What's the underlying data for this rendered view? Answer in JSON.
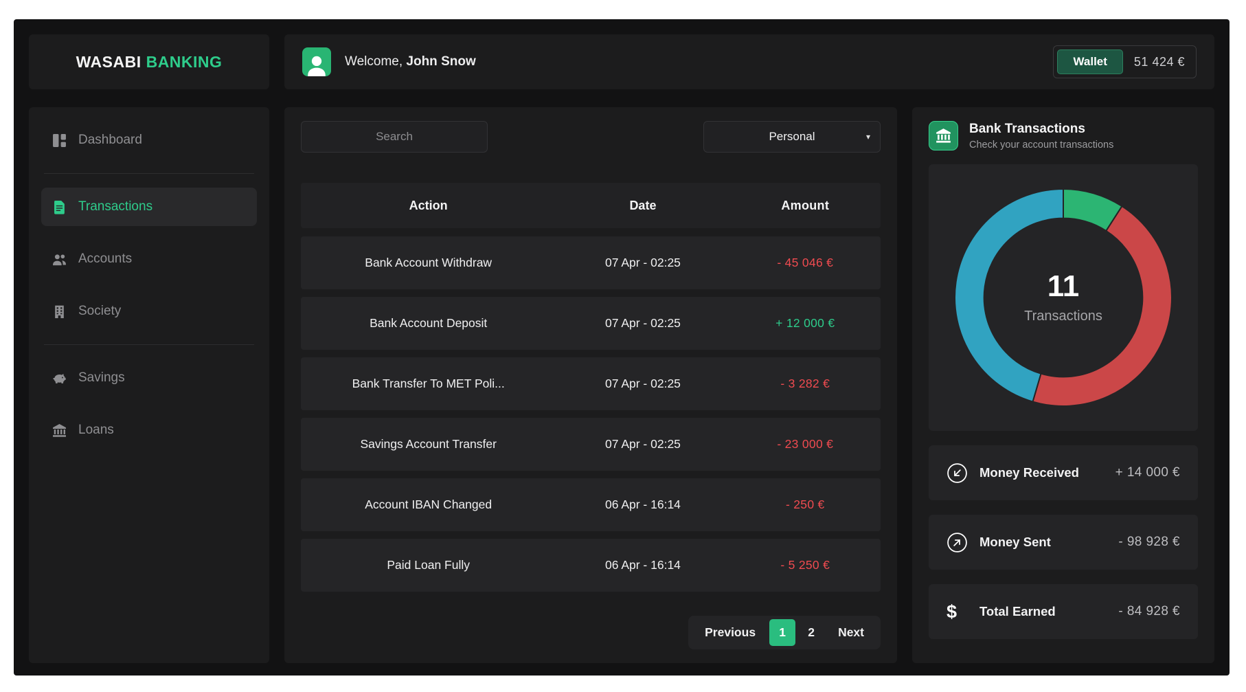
{
  "logo": {
    "brand_primary": "WASABI",
    "brand_accent": "BANKING"
  },
  "header": {
    "welcome_prefix": "Welcome,",
    "user_name": "John Snow",
    "wallet": {
      "label": "Wallet",
      "amount": "51 424 €"
    }
  },
  "sidebar": {
    "items": [
      {
        "label": "Dashboard",
        "icon": "dashboard-icon",
        "active": false
      },
      {
        "label": "Transactions",
        "icon": "document-icon",
        "active": true
      },
      {
        "label": "Accounts",
        "icon": "users-icon",
        "active": false
      },
      {
        "label": "Society",
        "icon": "building-icon",
        "active": false
      },
      {
        "label": "Savings",
        "icon": "piggy-bank-icon",
        "active": false
      },
      {
        "label": "Loans",
        "icon": "bank-icon",
        "active": false
      }
    ]
  },
  "toolbar": {
    "search_placeholder": "Search",
    "filter_value": "Personal"
  },
  "table": {
    "columns": [
      "Action",
      "Date",
      "Amount"
    ],
    "rows": [
      {
        "action": "Bank Account Withdraw",
        "date": "07 Apr - 02:25",
        "amount": "- 45 046 €"
      },
      {
        "action": "Bank Account Deposit",
        "date": "07 Apr - 02:25",
        "amount": "+ 12 000 €"
      },
      {
        "action": "Bank Transfer To MET Poli...",
        "date": "07 Apr - 02:25",
        "amount": "- 3 282 €"
      },
      {
        "action": "Savings Account Transfer",
        "date": "07 Apr - 02:25",
        "amount": "- 23 000 €"
      },
      {
        "action": "Account IBAN Changed",
        "date": "06 Apr - 16:14",
        "amount": "- 250 €"
      },
      {
        "action": "Paid Loan Fully",
        "date": "06 Apr - 16:14",
        "amount": "- 5 250 €"
      }
    ]
  },
  "pagination": {
    "previous_label": "Previous",
    "pages": [
      "1",
      "2"
    ],
    "active_page": "1",
    "next_label": "Next"
  },
  "panel": {
    "title": "Bank Transactions",
    "subtitle": "Check your account transactions",
    "stats": [
      {
        "label": "Money Received",
        "value": "+ 14 000 €",
        "icon": "arrow-down-left-circle-icon"
      },
      {
        "label": "Money Sent",
        "value": "- 98 928 €",
        "icon": "arrow-up-right-circle-icon"
      },
      {
        "label": "Total Earned",
        "value": "- 84 928 €",
        "icon": "dollar-icon"
      }
    ]
  },
  "chart_data": {
    "type": "pie",
    "title": "Bank Transactions",
    "center_value": "11",
    "center_label": "Transactions",
    "total_transactions": 11,
    "start_angle_deg": 0,
    "direction": "clockwise",
    "donut_hole_ratio": 0.73,
    "legend": "none",
    "segments": [
      {
        "name": "green-segment",
        "value": 1,
        "color": "#2cb573"
      },
      {
        "name": "red-segment",
        "value": 5,
        "color": "#cb4748"
      },
      {
        "name": "blue-segment",
        "value": 5,
        "color": "#31a3c1"
      }
    ]
  },
  "colors": {
    "accent_green": "#2ecc8b",
    "negative_red": "#ef4b50",
    "positive_green": "#2ecc8b",
    "wallet_chip_bg": "#1d5642",
    "app_background": "#121213",
    "card_background": "#1c1c1d"
  }
}
